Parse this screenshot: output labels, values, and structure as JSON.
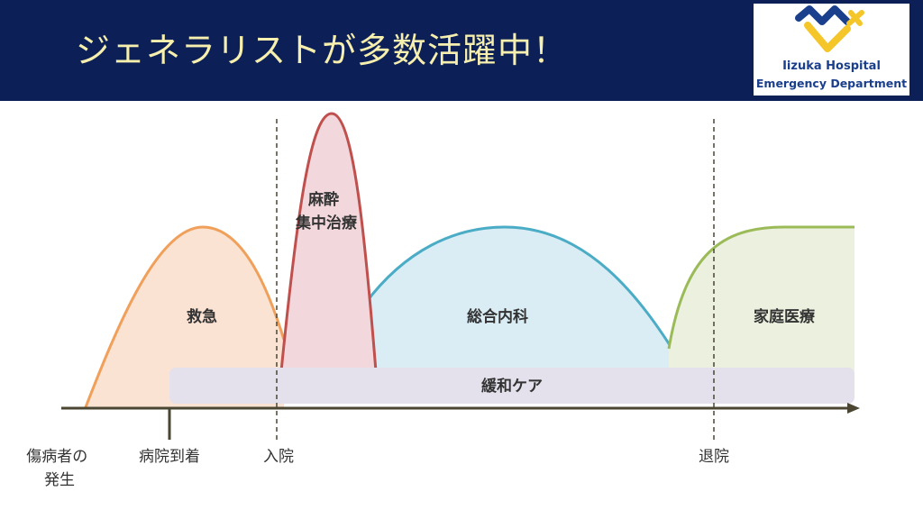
{
  "header": {
    "title": "ジェネラリストが多数活躍中！",
    "background_color": "#0c2057",
    "title_color": "#f7efae"
  },
  "logo": {
    "line1": "Iizuka Hospital",
    "line2": "Emergency Department",
    "icon": "heart-cross-logo-icon",
    "colors": {
      "blue": "#1a3f8c",
      "yellow": "#f4c62a"
    }
  },
  "diagram": {
    "phases": [
      {
        "label": "救急",
        "stroke": "#f0a05a",
        "fill": "#fbe3d3"
      },
      {
        "label": "麻酔\n集中治療",
        "stroke": "#c0504d",
        "fill": "#f2d8dc"
      },
      {
        "label": "総合内科",
        "stroke": "#4bacc6",
        "fill": "#daedf5"
      },
      {
        "label": "家庭医療",
        "stroke": "#9bbb59",
        "fill": "#ebf1de"
      }
    ],
    "band": {
      "label": "緩和ケア",
      "fill": "#e4e0ec"
    },
    "timeline": [
      {
        "label": "傷病者の\n発生",
        "marker": "none"
      },
      {
        "label": "病院到着",
        "marker": "tick"
      },
      {
        "label": "入院",
        "marker": "dashed"
      },
      {
        "label": "退院",
        "marker": "dashed"
      }
    ],
    "axis_color": "#4a4632"
  }
}
